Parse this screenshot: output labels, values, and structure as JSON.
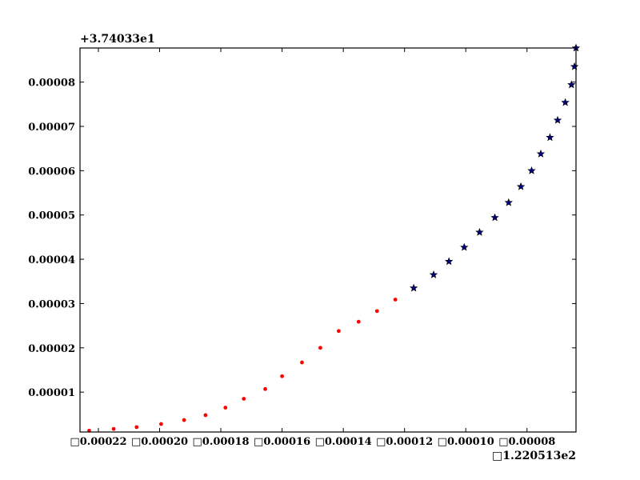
{
  "chart_data": {
    "type": "scatter",
    "title": "",
    "xlabel": "",
    "ylabel": "",
    "x_offset_label": "□1.220513e2",
    "y_offset_label": "+3.74033e1",
    "xlim": [
      -0.000226,
      -6.4e-05
    ],
    "ylim": [
      1e-06,
      8.77e-05
    ],
    "grid": false,
    "x_ticks": [
      -0.00022,
      -0.0002,
      -0.00018,
      -0.00016,
      -0.00014,
      -0.00012,
      -0.0001,
      -8e-05
    ],
    "x_tick_labels": [
      "□0.00022",
      "□0.00020",
      "□0.00018",
      "□0.00016",
      "□0.00014",
      "□0.00012",
      "□0.00010",
      "□0.00008"
    ],
    "y_ticks": [
      1e-05,
      2e-05,
      3e-05,
      4e-05,
      5e-05,
      6e-05,
      7e-05,
      8e-05
    ],
    "y_tick_labels": [
      "0.00001",
      "0.00002",
      "0.00003",
      "0.00004",
      "0.00005",
      "0.00006",
      "0.00007",
      "0.00008"
    ],
    "series": [
      {
        "marker": "circle",
        "color": "#ff0000",
        "points": [
          [
            -0.000223,
            1.3e-06
          ],
          [
            -0.000215,
            1.7e-06
          ],
          [
            -0.0002075,
            2.1e-06
          ],
          [
            -0.0001995,
            2.8e-06
          ],
          [
            -0.000192,
            3.7e-06
          ],
          [
            -0.000185,
            4.8e-06
          ],
          [
            -0.0001785,
            6.5e-06
          ],
          [
            -0.0001725,
            8.5e-06
          ],
          [
            -0.0001655,
            1.07e-05
          ],
          [
            -0.00016,
            1.36e-05
          ],
          [
            -0.0001535,
            1.67e-05
          ],
          [
            -0.0001475,
            2e-05
          ],
          [
            -0.0001415,
            2.38e-05
          ],
          [
            -0.000135,
            2.59e-05
          ],
          [
            -0.000129,
            2.83e-05
          ],
          [
            -0.000123,
            3.09e-05
          ]
        ]
      },
      {
        "marker": "star",
        "color": "#000080",
        "points": [
          [
            -0.000117,
            3.35e-05
          ],
          [
            -0.0001105,
            3.65e-05
          ],
          [
            -0.0001055,
            3.95e-05
          ],
          [
            -0.0001005,
            4.27e-05
          ],
          [
            -9.55e-05,
            4.61e-05
          ],
          [
            -9.05e-05,
            4.94e-05
          ],
          [
            -8.6e-05,
            5.28e-05
          ],
          [
            -8.2e-05,
            5.64e-05
          ],
          [
            -7.85e-05,
            6e-05
          ],
          [
            -7.55e-05,
            6.38e-05
          ],
          [
            -7.25e-05,
            6.75e-05
          ],
          [
            -7e-05,
            7.14e-05
          ],
          [
            -6.75e-05,
            7.54e-05
          ],
          [
            -6.55e-05,
            7.94e-05
          ],
          [
            -6.45e-05,
            8.35e-05
          ],
          [
            -6.4e-05,
            8.77e-05
          ]
        ]
      }
    ]
  }
}
